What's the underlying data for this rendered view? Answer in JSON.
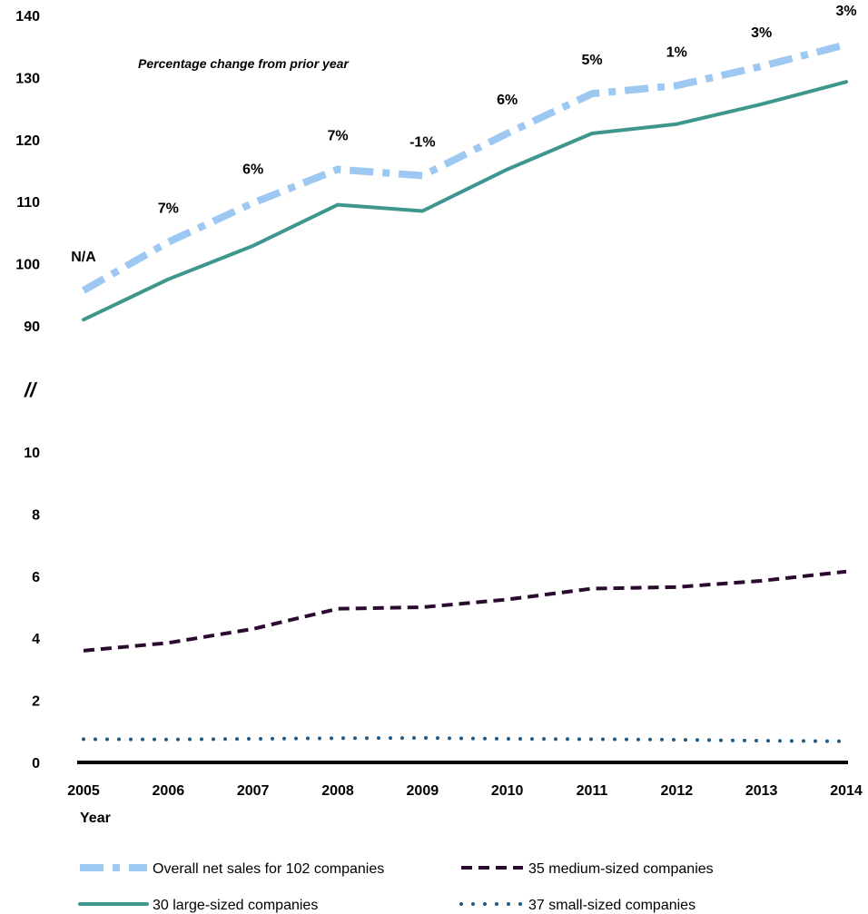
{
  "chart_data": {
    "type": "line",
    "annotation": "Percentage change from prior year",
    "xlabel": "Year",
    "axis_break_symbol": "//",
    "x": [
      "2005",
      "2006",
      "2007",
      "2008",
      "2009",
      "2010",
      "2011",
      "2012",
      "2013",
      "2014"
    ],
    "y_ticks_upper": [
      "140",
      "130",
      "120",
      "110",
      "100",
      "90"
    ],
    "y_ticks_lower": [
      "10",
      "8",
      "6",
      "4",
      "2",
      "0"
    ],
    "ylim_upper": [
      90,
      140
    ],
    "ylim_lower": [
      0,
      10
    ],
    "percent_change_labels": [
      "N/A",
      "7%",
      "6%",
      "7%",
      "-1%",
      "6%",
      "5%",
      "1%",
      "3%",
      "3%"
    ],
    "series": [
      {
        "name": "Overall net sales for 102 companies",
        "segment": "upper",
        "style": "dash-dot",
        "color": "#9dc8f2",
        "values": [
          95.7,
          103.5,
          109.8,
          115.2,
          114.2,
          121.0,
          127.4,
          128.7,
          131.8,
          135.3
        ]
      },
      {
        "name": "30 large-sized companies",
        "segment": "upper",
        "style": "solid",
        "color": "#3e968c",
        "values": [
          91.0,
          97.5,
          102.9,
          109.5,
          108.5,
          115.2,
          121.0,
          122.5,
          125.7,
          129.3
        ]
      },
      {
        "name": "35 medium-sized companies",
        "segment": "lower",
        "style": "dashed",
        "color": "#2b0a30",
        "values": [
          3.6,
          3.85,
          4.3,
          4.95,
          5.0,
          5.25,
          5.6,
          5.65,
          5.85,
          6.15
        ]
      },
      {
        "name": "37 small-sized companies",
        "segment": "lower",
        "style": "dotted",
        "color": "#1f5a85",
        "values": [
          0.75,
          0.74,
          0.76,
          0.78,
          0.79,
          0.76,
          0.75,
          0.73,
          0.7,
          0.68
        ]
      }
    ],
    "legend_placement": "bottom",
    "grid": false
  }
}
